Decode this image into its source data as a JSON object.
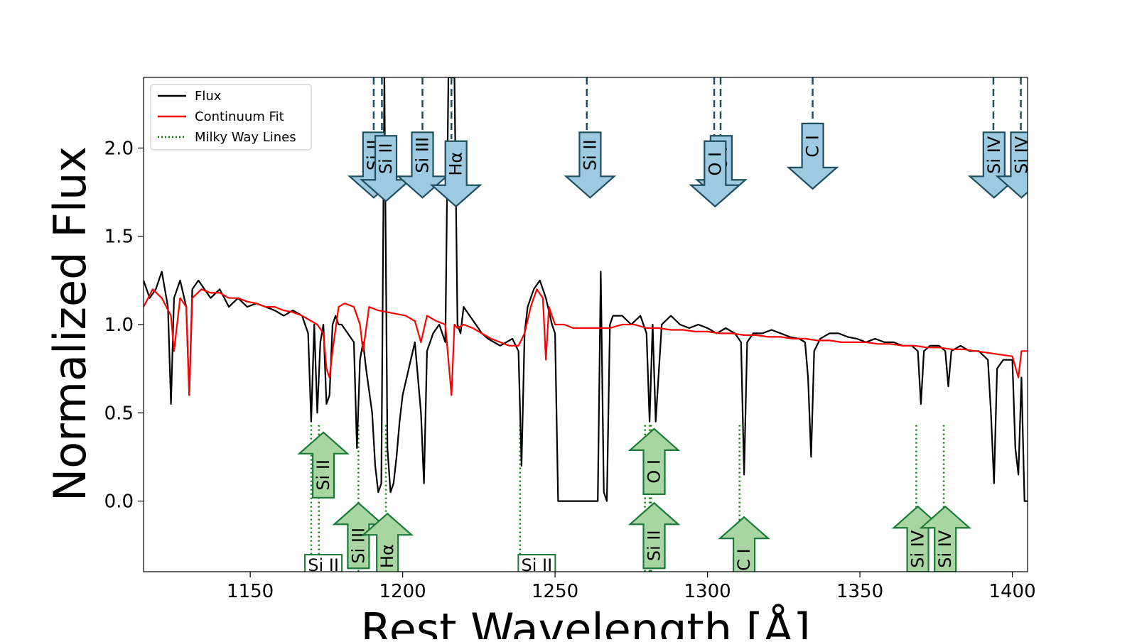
{
  "chart_data": {
    "type": "line",
    "title": "",
    "xlabel": "Rest Wavelength [Å]",
    "ylabel": "Normalized Flux",
    "xlim": [
      1115,
      1405
    ],
    "ylim": [
      -0.4,
      2.4
    ],
    "xticks": [
      1150,
      1200,
      1250,
      1300,
      1350,
      1400
    ],
    "yticks": [
      0.0,
      0.5,
      1.0,
      1.5,
      2.0
    ],
    "grid": false,
    "legend": {
      "placement": "top-left",
      "entries": [
        {
          "label": "Flux",
          "color": "#000000",
          "style": "solid"
        },
        {
          "label": "Continuum Fit",
          "color": "#ff0000",
          "style": "solid"
        },
        {
          "label": "Milky Way Lines",
          "color": "#008000",
          "style": "dotted"
        }
      ]
    },
    "colors": {
      "flux": "#000000",
      "continuum": "#ff0000",
      "mw_line": "#008000",
      "intrinsic_line": "#1f4e5f",
      "intrinsic_fill": "#9ecae1",
      "mw_fill": "#a8d5a2"
    },
    "series": [
      {
        "name": "Flux",
        "x": [
          1115,
          1117,
          1119,
          1121,
          1123,
          1124,
          1125,
          1127,
          1129,
          1130,
          1131,
          1133,
          1135,
          1137,
          1140,
          1143,
          1146,
          1149,
          1152,
          1155,
          1158,
          1161,
          1164,
          1167,
          1169,
          1170,
          1171,
          1172,
          1173,
          1174,
          1175,
          1176,
          1177,
          1178,
          1179,
          1180,
          1182,
          1184,
          1185,
          1186,
          1187,
          1188,
          1190,
          1191,
          1192,
          1193,
          1194,
          1195,
          1196,
          1197,
          1198,
          1199,
          1200,
          1202,
          1204,
          1206,
          1207,
          1208,
          1210,
          1212,
          1214,
          1215,
          1216,
          1217,
          1218,
          1219,
          1220,
          1222,
          1224,
          1226,
          1228,
          1230,
          1232,
          1234,
          1236,
          1238,
          1239,
          1240,
          1241,
          1243,
          1245,
          1247,
          1249,
          1250,
          1251,
          1252,
          1255,
          1258,
          1261,
          1263,
          1264,
          1265,
          1266,
          1267,
          1268,
          1269,
          1272,
          1275,
          1278,
          1280,
          1281,
          1282,
          1283,
          1285,
          1288,
          1291,
          1294,
          1297,
          1300,
          1303,
          1306,
          1309,
          1311,
          1312,
          1313,
          1315,
          1318,
          1321,
          1324,
          1327,
          1330,
          1332,
          1333,
          1334,
          1335,
          1337,
          1340,
          1343,
          1346,
          1349,
          1352,
          1355,
          1358,
          1361,
          1364,
          1367,
          1369,
          1370,
          1371,
          1373,
          1376,
          1378,
          1379,
          1380,
          1383,
          1386,
          1389,
          1392,
          1393,
          1394,
          1395,
          1397,
          1400,
          1401,
          1402,
          1403,
          1404,
          1405
        ],
        "y": [
          1.25,
          1.15,
          1.2,
          1.3,
          1.1,
          0.55,
          1.15,
          1.25,
          1.1,
          0.6,
          1.2,
          1.25,
          1.2,
          1.15,
          1.2,
          1.1,
          1.15,
          1.1,
          1.12,
          1.1,
          1.08,
          1.05,
          1.08,
          1.05,
          0.95,
          0.45,
          1.0,
          0.5,
          0.9,
          1.0,
          0.55,
          0.6,
          1.0,
          1.05,
          1.0,
          1.0,
          0.95,
          0.9,
          0.3,
          0.8,
          0.9,
          0.75,
          0.5,
          0.2,
          0.05,
          0.1,
          2.4,
          0.3,
          0.05,
          0.1,
          0.25,
          0.45,
          0.6,
          0.75,
          0.9,
          0.5,
          0.1,
          0.85,
          0.95,
          1.0,
          0.9,
          2.4,
          2.4,
          2.4,
          1.0,
          0.95,
          1.1,
          1.05,
          1.0,
          0.95,
          0.92,
          0.9,
          0.88,
          0.9,
          0.92,
          0.85,
          0.2,
          0.95,
          1.1,
          1.2,
          1.25,
          1.15,
          1.0,
          0.95,
          0.0,
          0.0,
          0.0,
          0.0,
          0.0,
          0.0,
          0.0,
          1.3,
          0.05,
          0.0,
          1.0,
          1.05,
          1.05,
          1.0,
          1.05,
          0.95,
          0.45,
          1.0,
          0.45,
          1.0,
          1.05,
          1.0,
          0.98,
          1.0,
          0.98,
          0.95,
          0.98,
          0.95,
          0.9,
          0.15,
          0.9,
          0.95,
          0.95,
          0.97,
          0.95,
          0.93,
          0.92,
          0.9,
          0.7,
          0.25,
          0.85,
          0.92,
          0.95,
          0.95,
          0.93,
          0.92,
          0.9,
          0.92,
          0.9,
          0.9,
          0.88,
          0.88,
          0.85,
          0.55,
          0.85,
          0.88,
          0.88,
          0.85,
          0.65,
          0.85,
          0.88,
          0.85,
          0.85,
          0.8,
          0.5,
          0.1,
          0.75,
          0.8,
          0.8,
          0.3,
          0.15,
          0.7,
          0.0,
          0.0
        ]
      },
      {
        "name": "Continuum Fit",
        "x": [
          1115,
          1118,
          1121,
          1124,
          1125,
          1127,
          1129,
          1130,
          1131,
          1134,
          1137,
          1140,
          1143,
          1146,
          1149,
          1152,
          1155,
          1158,
          1161,
          1164,
          1167,
          1170,
          1172,
          1174,
          1175,
          1176,
          1177,
          1179,
          1181,
          1184,
          1186,
          1187,
          1189,
          1192,
          1195,
          1198,
          1201,
          1204,
          1206,
          1208,
          1211,
          1214,
          1216,
          1217,
          1218,
          1220,
          1223,
          1226,
          1229,
          1232,
          1235,
          1238,
          1240,
          1242,
          1244,
          1246,
          1247,
          1248,
          1250,
          1253,
          1256,
          1260,
          1264,
          1268,
          1272,
          1276,
          1280,
          1284,
          1288,
          1292,
          1296,
          1300,
          1304,
          1308,
          1312,
          1316,
          1320,
          1324,
          1328,
          1332,
          1336,
          1340,
          1344,
          1348,
          1352,
          1356,
          1360,
          1364,
          1368,
          1372,
          1376,
          1380,
          1384,
          1388,
          1392,
          1396,
          1400,
          1402,
          1403,
          1405
        ],
        "y": [
          1.1,
          1.2,
          1.15,
          1.05,
          0.85,
          1.15,
          1.1,
          0.6,
          1.15,
          1.2,
          1.18,
          1.18,
          1.15,
          1.15,
          1.13,
          1.12,
          1.1,
          1.1,
          1.08,
          1.07,
          1.05,
          1.02,
          1.0,
          0.95,
          0.75,
          0.7,
          0.85,
          1.1,
          1.12,
          1.1,
          1.0,
          0.85,
          1.1,
          1.08,
          1.07,
          1.06,
          1.05,
          1.02,
          0.9,
          1.05,
          1.02,
          1.0,
          0.6,
          1.0,
          0.98,
          1.0,
          0.98,
          0.95,
          0.92,
          0.9,
          0.88,
          0.88,
          0.95,
          1.1,
          1.2,
          1.15,
          0.8,
          1.1,
          1.0,
          1.0,
          0.98,
          0.98,
          0.98,
          0.98,
          1.0,
          1.0,
          0.98,
          0.98,
          0.97,
          0.97,
          0.96,
          0.96,
          0.95,
          0.95,
          0.94,
          0.94,
          0.93,
          0.93,
          0.92,
          0.92,
          0.91,
          0.91,
          0.9,
          0.9,
          0.9,
          0.89,
          0.89,
          0.88,
          0.88,
          0.87,
          0.87,
          0.86,
          0.86,
          0.85,
          0.84,
          0.83,
          0.82,
          0.7,
          0.85,
          0.85
        ]
      }
    ],
    "intrinsic_lines": [
      {
        "label": "Si II",
        "wavelength": 1190.5
      },
      {
        "label": "Si II",
        "wavelength": 1193.2
      },
      {
        "label": "Si III",
        "wavelength": 1206.5
      },
      {
        "label": "Hα",
        "wavelength": 1216
      },
      {
        "label": "Si II",
        "wavelength": 1260.4
      },
      {
        "label": "O I",
        "wavelength": 1302.2
      },
      {
        "label": "O I",
        "wavelength": 1304.3
      },
      {
        "label": "C I",
        "wavelength": 1334.5
      },
      {
        "label": "Si IV",
        "wavelength": 1393.8
      },
      {
        "label": "Si IV",
        "wavelength": 1402.8
      }
    ],
    "milky_way_lines": [
      {
        "label": "Si II",
        "wavelength": 1170
      },
      {
        "label": "Si II",
        "wavelength": 1172.5
      },
      {
        "label": "Si III",
        "wavelength": 1185.5
      },
      {
        "label": "Hα",
        "wavelength": 1194.5
      },
      {
        "label": "Si II",
        "wavelength": 1238.5
      },
      {
        "label": "O I",
        "wavelength": 1279.5
      },
      {
        "label": "O I",
        "wavelength": 1281.5
      },
      {
        "label": "Si II",
        "wavelength": 1281
      },
      {
        "label": "C I",
        "wavelength": 1310.5
      },
      {
        "label": "Si IV",
        "wavelength": 1368.5
      },
      {
        "label": "Si IV",
        "wavelength": 1377.5
      }
    ],
    "annotations": [
      {
        "label": "Si II",
        "kind": "mw-arrow",
        "x": 1174,
        "y": 0.18
      },
      {
        "label": "Si III",
        "kind": "mw-arrow",
        "x": 1185.5,
        "y": -0.22
      },
      {
        "label": "Hα",
        "kind": "mw-arrow",
        "x": 1195,
        "y": -0.28
      },
      {
        "label": "Si II",
        "kind": "mw-box",
        "x": 1174,
        "y": -0.36
      },
      {
        "label": "Si II",
        "kind": "mw-box",
        "x": 1244,
        "y": -0.36
      },
      {
        "label": "O I",
        "kind": "mw-arrow",
        "x": 1282.5,
        "y": 0.2
      },
      {
        "label": "Si II",
        "kind": "mw-arrow",
        "x": 1282.5,
        "y": -0.22
      },
      {
        "label": "C I",
        "kind": "mw-arrow",
        "x": 1312,
        "y": -0.3
      },
      {
        "label": "Si IV",
        "kind": "mw-arrow",
        "x": 1369,
        "y": -0.24
      },
      {
        "label": "Si IV",
        "kind": "mw-arrow",
        "x": 1378,
        "y": -0.24
      },
      {
        "label": "Si II",
        "kind": "int-arrow",
        "x": 1190.5,
        "y": 1.92
      },
      {
        "label": "Si II",
        "kind": "int-arrow",
        "x": 1194.5,
        "y": 1.9
      },
      {
        "label": "Si III",
        "kind": "int-arrow",
        "x": 1206.5,
        "y": 1.92
      },
      {
        "label": "Hα",
        "kind": "int-arrow",
        "x": 1217.5,
        "y": 1.87
      },
      {
        "label": "Si II",
        "kind": "int-arrow",
        "x": 1261.5,
        "y": 1.92
      },
      {
        "label": "O I",
        "kind": "int-arrow",
        "x": 1304.5,
        "y": 1.9
      },
      {
        "label": "O I",
        "kind": "int-arrow",
        "x": 1302.5,
        "y": 1.87
      },
      {
        "label": "C I",
        "kind": "int-arrow",
        "x": 1334.5,
        "y": 1.97
      },
      {
        "label": "Si IV",
        "kind": "int-arrow",
        "x": 1394,
        "y": 1.92
      },
      {
        "label": "Si IV",
        "kind": "int-arrow",
        "x": 1403,
        "y": 1.92
      }
    ]
  }
}
